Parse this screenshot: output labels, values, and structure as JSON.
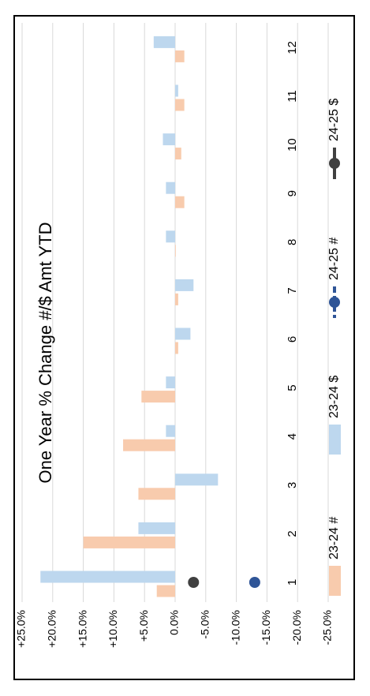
{
  "chart_data": {
    "type": "bar",
    "title": "One Year % Change #/$ Amt YTD",
    "categories": [
      "1",
      "2",
      "3",
      "4",
      "5",
      "6",
      "7",
      "8",
      "9",
      "10",
      "11",
      "12"
    ],
    "ylim": [
      -25,
      25
    ],
    "yticks": [
      "+25.0%",
      "+20.0%",
      "+15.0%",
      "+10.0%",
      "+5.0%",
      "0.0%",
      "-5.0%",
      "-10.0%",
      "-15.0%",
      "-20.0%",
      "-25.0%"
    ],
    "grid": true,
    "legend_position": "bottom",
    "series": [
      {
        "name": "23-24 #",
        "kind": "bar",
        "color": "#F8CBAD",
        "values": [
          3.0,
          15.0,
          6.0,
          8.5,
          5.5,
          -0.5,
          -0.5,
          0.0,
          -1.5,
          -1.0,
          -1.5,
          -1.5
        ]
      },
      {
        "name": "23-24 $",
        "kind": "bar",
        "color": "#BDD7EE",
        "values": [
          22.0,
          6.0,
          -7.0,
          1.5,
          1.5,
          -2.5,
          -3.0,
          1.5,
          1.5,
          2.0,
          -0.5,
          3.5
        ]
      },
      {
        "name": "24-25 #",
        "kind": "marker",
        "color": "#2F5597",
        "values": [
          -13.0,
          null,
          null,
          null,
          null,
          null,
          null,
          null,
          null,
          null,
          null,
          null
        ]
      },
      {
        "name": "24-25 $",
        "kind": "marker",
        "color": "#404040",
        "values": [
          -3.0,
          null,
          null,
          null,
          null,
          null,
          null,
          null,
          null,
          null,
          null,
          null
        ]
      }
    ]
  }
}
